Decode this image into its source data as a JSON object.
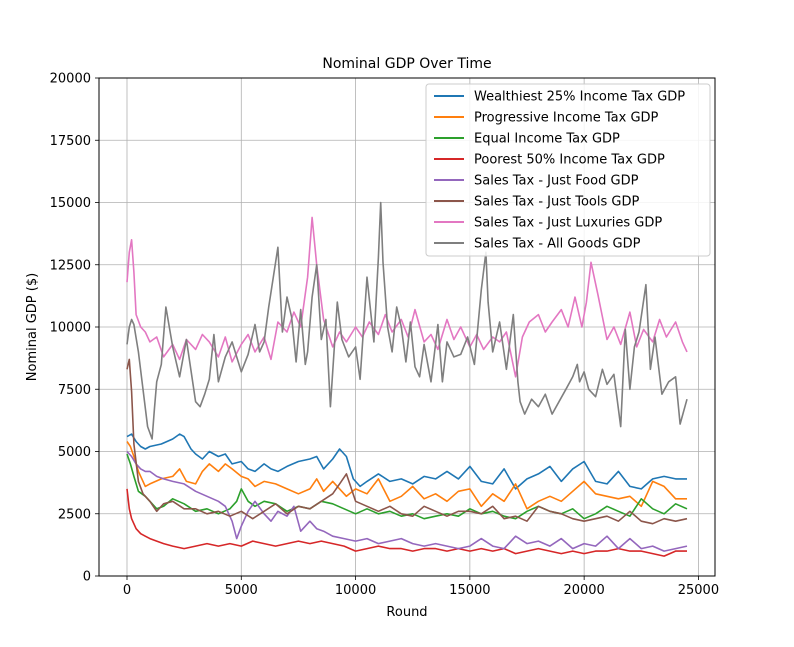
{
  "chart_data": {
    "type": "line",
    "title": "Nominal GDP Over Time",
    "xlabel": "Round",
    "ylabel": "Nominal GDP ($)",
    "xlim": [
      -1225,
      25725
    ],
    "ylim": [
      0,
      20000
    ],
    "xticks": [
      0,
      5000,
      10000,
      15000,
      20000,
      25000
    ],
    "xtick_labels": [
      "0",
      "5000",
      "10000",
      "15000",
      "20000",
      "25000"
    ],
    "yticks": [
      0,
      2500,
      5000,
      7500,
      10000,
      12500,
      15000,
      17500,
      20000
    ],
    "ytick_labels": [
      "0",
      "2500",
      "5000",
      "7500",
      "10000",
      "12500",
      "15000",
      "17500",
      "20000"
    ],
    "grid": true,
    "legend_position": "upper right",
    "series": [
      {
        "name": "Wealthiest 25% Income Tax GDP",
        "color": "#1f77b4",
        "x": [
          0,
          200,
          400,
          600,
          800,
          1000,
          1500,
          2000,
          2300,
          2500,
          2800,
          3000,
          3300,
          3600,
          4000,
          4300,
          4600,
          5000,
          5300,
          5600,
          6000,
          6300,
          6600,
          7000,
          7500,
          8000,
          8300,
          8600,
          9000,
          9300,
          9600,
          9900,
          10200,
          10500,
          11000,
          11500,
          12000,
          12500,
          13000,
          13500,
          14000,
          14500,
          15000,
          15500,
          16000,
          16500,
          17000,
          17500,
          18000,
          18500,
          19000,
          19500,
          20000,
          20500,
          21000,
          21500,
          22000,
          22500,
          23000,
          23500,
          24000,
          24500
        ],
        "y": [
          5600,
          5700,
          5400,
          5200,
          5100,
          5200,
          5300,
          5500,
          5700,
          5600,
          5100,
          4900,
          4700,
          5000,
          4800,
          4900,
          4500,
          4600,
          4300,
          4200,
          4500,
          4300,
          4200,
          4400,
          4600,
          4700,
          4800,
          4300,
          4700,
          5100,
          4800,
          3900,
          3600,
          3800,
          4100,
          3800,
          3900,
          3700,
          4000,
          3900,
          4200,
          3900,
          4400,
          3800,
          3700,
          4300,
          3500,
          3900,
          4100,
          4400,
          3800,
          4300,
          4600,
          3800,
          3700,
          4200,
          3600,
          3500,
          3900,
          4000,
          3900,
          3900
        ]
      },
      {
        "name": "Progressive Income Tax GDP",
        "color": "#ff7f0e",
        "x": [
          0,
          150,
          300,
          500,
          800,
          1000,
          1500,
          2000,
          2300,
          2600,
          3000,
          3300,
          3600,
          4000,
          4300,
          4600,
          5000,
          5300,
          5600,
          6000,
          6500,
          7000,
          7500,
          8000,
          8300,
          8600,
          9000,
          9300,
          9600,
          10000,
          10500,
          11000,
          11500,
          12000,
          12500,
          13000,
          13500,
          14000,
          14500,
          15000,
          15500,
          16000,
          16500,
          17000,
          17500,
          18000,
          18500,
          19000,
          19500,
          20000,
          20500,
          21000,
          21500,
          22000,
          22500,
          23000,
          23500,
          24000,
          24500
        ],
        "y": [
          5400,
          5200,
          4800,
          4200,
          3600,
          3700,
          3900,
          4000,
          4300,
          3800,
          3700,
          4200,
          4500,
          4200,
          4500,
          4300,
          4000,
          3900,
          3600,
          3800,
          3700,
          3500,
          3300,
          3500,
          3900,
          3400,
          3800,
          3500,
          3200,
          3500,
          3300,
          3900,
          3000,
          3200,
          3600,
          3100,
          3300,
          3000,
          3400,
          3500,
          2800,
          3300,
          3000,
          3700,
          2700,
          3000,
          3200,
          3000,
          3400,
          3800,
          3300,
          3200,
          3100,
          3200,
          2800,
          3800,
          3600,
          3100,
          3100
        ]
      },
      {
        "name": "Equal Income Tax GDP",
        "color": "#2ca02c",
        "x": [
          0,
          150,
          300,
          500,
          800,
          1000,
          1300,
          1600,
          2000,
          2500,
          3000,
          3500,
          4000,
          4500,
          4800,
          5000,
          5300,
          5600,
          6000,
          6500,
          7000,
          7500,
          8000,
          8500,
          9000,
          9500,
          10000,
          10500,
          11000,
          11500,
          12000,
          12500,
          13000,
          13500,
          14000,
          14500,
          15000,
          15500,
          16000,
          16500,
          17000,
          17500,
          18000,
          18500,
          19000,
          19500,
          20000,
          20500,
          21000,
          21500,
          22000,
          22500,
          23000,
          23500,
          24000,
          24500
        ],
        "y": [
          4900,
          4500,
          4000,
          3400,
          3200,
          3000,
          2700,
          2800,
          3100,
          2900,
          2600,
          2700,
          2500,
          2700,
          3000,
          3500,
          3000,
          2800,
          3000,
          2900,
          2600,
          2800,
          2700,
          3000,
          2900,
          2700,
          2500,
          2700,
          2500,
          2600,
          2400,
          2500,
          2300,
          2400,
          2500,
          2400,
          2700,
          2500,
          2600,
          2400,
          2300,
          2600,
          2800,
          2600,
          2500,
          2700,
          2300,
          2500,
          2800,
          2600,
          2400,
          3100,
          2700,
          2500,
          2900,
          2700
        ]
      },
      {
        "name": "Poorest 50% Income Tax GDP",
        "color": "#d62728",
        "x": [
          0,
          100,
          200,
          400,
          600,
          800,
          1000,
          1300,
          1600,
          2000,
          2500,
          3000,
          3500,
          4000,
          4500,
          5000,
          5500,
          6000,
          6500,
          7000,
          7500,
          8000,
          8500,
          9000,
          9500,
          10000,
          10500,
          11000,
          11500,
          12000,
          12500,
          13000,
          13500,
          14000,
          14500,
          15000,
          15500,
          16000,
          16500,
          17000,
          17500,
          18000,
          18500,
          19000,
          19500,
          20000,
          20500,
          21000,
          21500,
          22000,
          22500,
          23000,
          23500,
          24000,
          24500
        ],
        "y": [
          3500,
          2700,
          2300,
          1900,
          1700,
          1600,
          1500,
          1400,
          1300,
          1200,
          1100,
          1200,
          1300,
          1200,
          1300,
          1200,
          1400,
          1300,
          1200,
          1300,
          1400,
          1300,
          1400,
          1300,
          1200,
          1000,
          1100,
          1200,
          1100,
          1100,
          1000,
          1100,
          1100,
          1000,
          1100,
          1000,
          1100,
          1000,
          1100,
          900,
          1000,
          1100,
          1000,
          900,
          1000,
          900,
          1000,
          1000,
          1100,
          1000,
          1000,
          900,
          800,
          1000,
          1000
        ]
      },
      {
        "name": "Sales Tax - Just Food GDP",
        "color": "#9467bd",
        "x": [
          0,
          200,
          400,
          600,
          800,
          1000,
          1300,
          1600,
          2000,
          2500,
          3000,
          3500,
          4000,
          4300,
          4600,
          4800,
          5000,
          5300,
          5600,
          6000,
          6300,
          6600,
          7000,
          7300,
          7600,
          8000,
          8300,
          8600,
          9000,
          9500,
          10000,
          10500,
          11000,
          11500,
          12000,
          12500,
          13000,
          13500,
          14000,
          14500,
          15000,
          15500,
          16000,
          16500,
          17000,
          17500,
          18000,
          18500,
          19000,
          19500,
          20000,
          20500,
          21000,
          21500,
          22000,
          22500,
          23000,
          23500,
          24000,
          24500
        ],
        "y": [
          5000,
          4800,
          4500,
          4300,
          4200,
          4200,
          4000,
          3900,
          3800,
          3700,
          3400,
          3200,
          3000,
          2800,
          2200,
          1500,
          2000,
          2600,
          3000,
          2500,
          2200,
          2600,
          2400,
          2800,
          1800,
          2200,
          1900,
          1800,
          1600,
          1500,
          1400,
          1500,
          1300,
          1400,
          1500,
          1300,
          1200,
          1300,
          1200,
          1100,
          1200,
          1500,
          1200,
          1100,
          1600,
          1300,
          1400,
          1200,
          1500,
          1100,
          1300,
          1200,
          1600,
          1100,
          1500,
          1100,
          1200,
          1000,
          1100,
          1200
        ]
      },
      {
        "name": "Sales Tax - Just Tools GDP",
        "color": "#8c564b",
        "x": [
          0,
          100,
          200,
          300,
          500,
          700,
          1000,
          1300,
          1600,
          2000,
          2500,
          3000,
          3500,
          4000,
          4500,
          5000,
          5500,
          6000,
          6500,
          7000,
          7500,
          8000,
          8500,
          9000,
          9300,
          9600,
          10000,
          10500,
          11000,
          11500,
          12000,
          12500,
          13000,
          13500,
          14000,
          14500,
          15000,
          15500,
          16000,
          16500,
          17000,
          17500,
          18000,
          18500,
          19000,
          19500,
          20000,
          20500,
          21000,
          21500,
          22000,
          22500,
          23000,
          23500,
          24000,
          24500
        ],
        "y": [
          8300,
          8700,
          7400,
          5300,
          3800,
          3300,
          3000,
          2600,
          2900,
          3000,
          2700,
          2700,
          2500,
          2600,
          2400,
          2600,
          2300,
          2600,
          2900,
          2500,
          2800,
          2700,
          3000,
          3300,
          3700,
          4100,
          3000,
          2800,
          2600,
          2800,
          2500,
          2400,
          2800,
          2600,
          2400,
          2600,
          2600,
          2500,
          2800,
          2300,
          2400,
          2200,
          2800,
          2600,
          2500,
          2300,
          2200,
          2300,
          2400,
          2200,
          2600,
          2200,
          2100,
          2300,
          2200,
          2300
        ]
      },
      {
        "name": "Sales Tax - Just Luxuries GDP",
        "color": "#e377c2",
        "x": [
          0,
          100,
          200,
          300,
          400,
          600,
          800,
          1000,
          1300,
          1600,
          2000,
          2300,
          2600,
          3000,
          3300,
          3600,
          4000,
          4300,
          4600,
          5000,
          5300,
          5600,
          6000,
          6300,
          6600,
          7000,
          7300,
          7600,
          7900,
          8100,
          8300,
          8600,
          9000,
          9300,
          9600,
          10000,
          10300,
          10600,
          11000,
          11300,
          11600,
          12000,
          12300,
          12600,
          13000,
          13300,
          13600,
          14000,
          14300,
          14600,
          15000,
          15300,
          15600,
          16000,
          16300,
          16600,
          17000,
          17300,
          17600,
          18000,
          18300,
          18600,
          19000,
          19300,
          19600,
          19900,
          20100,
          20300,
          20600,
          21000,
          21300,
          21600,
          22000,
          22300,
          22600,
          23000,
          23300,
          23600,
          24000,
          24300,
          24500
        ],
        "y": [
          11800,
          13000,
          13500,
          12200,
          10500,
          10000,
          9800,
          9400,
          9600,
          8800,
          9300,
          8700,
          9500,
          9100,
          9700,
          9400,
          8800,
          9600,
          8600,
          9300,
          9700,
          9000,
          9600,
          8700,
          10200,
          9800,
          10600,
          10000,
          12000,
          14400,
          12500,
          10300,
          9200,
          9800,
          9400,
          10000,
          9600,
          10200,
          9700,
          10500,
          9800,
          10300,
          9600,
          10700,
          9400,
          9700,
          9100,
          10300,
          9500,
          10000,
          9200,
          9700,
          9100,
          9600,
          9400,
          9800,
          8000,
          9600,
          10200,
          10500,
          9800,
          10200,
          10700,
          10000,
          11200,
          10000,
          11000,
          12600,
          11300,
          9500,
          10000,
          9300,
          10600,
          9200,
          9900,
          9400,
          10300,
          9600,
          10200,
          9400,
          9000
        ]
      },
      {
        "name": "Sales Tax - All Goods GDP",
        "color": "#7f7f7f",
        "x": [
          0,
          100,
          200,
          300,
          500,
          700,
          900,
          1100,
          1200,
          1300,
          1500,
          1700,
          2000,
          2300,
          2600,
          3000,
          3200,
          3400,
          3600,
          3800,
          4000,
          4300,
          4600,
          5000,
          5300,
          5600,
          5800,
          6000,
          6200,
          6400,
          6600,
          6800,
          7000,
          7200,
          7400,
          7600,
          7800,
          7900,
          8100,
          8300,
          8500,
          8700,
          8900,
          9200,
          9400,
          9700,
          10000,
          10200,
          10500,
          10800,
          11000,
          11100,
          11200,
          11400,
          11600,
          11800,
          12000,
          12200,
          12400,
          12600,
          12800,
          13000,
          13300,
          13600,
          13800,
          14000,
          14300,
          14600,
          14900,
          15200,
          15500,
          15700,
          15800,
          16000,
          16300,
          16600,
          16900,
          17100,
          17200,
          17400,
          17700,
          18000,
          18300,
          18600,
          18900,
          19200,
          19500,
          19700,
          19800,
          20000,
          20200,
          20500,
          20800,
          21000,
          21300,
          21600,
          21800,
          22000,
          22200,
          22400,
          22700,
          22900,
          23100,
          23400,
          23700,
          24000,
          24200,
          24500
        ],
        "y": [
          9300,
          10000,
          10300,
          10100,
          9000,
          7500,
          6000,
          5500,
          6700,
          7800,
          8500,
          10800,
          9200,
          8000,
          9500,
          7000,
          6800,
          7300,
          7900,
          9700,
          7800,
          8800,
          9400,
          8200,
          8900,
          10100,
          9000,
          9400,
          10800,
          12000,
          13200,
          9800,
          11200,
          10400,
          8600,
          10700,
          8500,
          9000,
          11200,
          12500,
          9500,
          10300,
          6800,
          11000,
          9500,
          8800,
          9200,
          7900,
          12000,
          9400,
          12800,
          15000,
          12600,
          10000,
          9000,
          10800,
          10000,
          8600,
          10200,
          8400,
          8000,
          9300,
          7800,
          10100,
          7800,
          9400,
          8800,
          8900,
          9600,
          8500,
          11500,
          13000,
          11000,
          9000,
          10200,
          8300,
          10500,
          7800,
          7000,
          6500,
          7100,
          6800,
          7300,
          6500,
          7000,
          7500,
          8000,
          8500,
          7800,
          8200,
          7500,
          7200,
          8300,
          7700,
          8100,
          6000,
          9900,
          7500,
          9200,
          9800,
          11700,
          8300,
          9600,
          7300,
          7800,
          8000,
          6100,
          7100
        ]
      }
    ]
  }
}
